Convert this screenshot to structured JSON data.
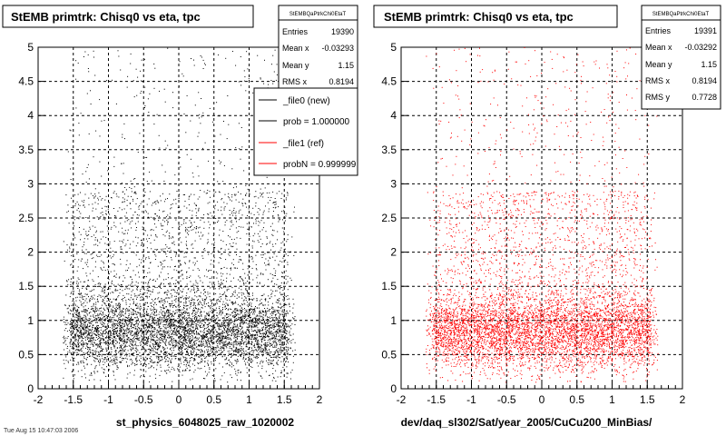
{
  "footer_text": "Tue Aug 15 10:47:03 2006",
  "colors": {
    "new": "#000000",
    "ref": "#ff0000",
    "grid": "#000000",
    "background": "#ffffff"
  },
  "legend": {
    "entries": [
      {
        "label": "_file0 (new)",
        "color": "#000000"
      },
      {
        "label": "prob = 1.000000",
        "color": "#000000"
      },
      {
        "label": "_file1 (ref)",
        "color": "#ff0000"
      },
      {
        "label": "probN = 0.999999",
        "color": "#ff0000"
      }
    ]
  },
  "chart_data": [
    {
      "type": "scatter",
      "title": "StEMB primtrk: Chisq0 vs eta, tpc",
      "xlabel": "st_physics_6048025_raw_1020002",
      "ylabel": "",
      "xlim": [
        -2,
        2
      ],
      "ylim": [
        0,
        5
      ],
      "x_ticks": [
        "-2",
        "-1.5",
        "-1",
        "-0.5",
        "0",
        "0.5",
        "1",
        "1.5",
        "2"
      ],
      "y_ticks": [
        "0",
        "0.5",
        "1",
        "1.5",
        "2",
        "2.5",
        "3",
        "3.5",
        "4",
        "4.5",
        "5"
      ],
      "grid": true,
      "color": "#000000",
      "stats": {
        "name": "StEMBQaPtrkChi0EtaT",
        "rows": [
          {
            "label": "Entries",
            "value": "19390"
          },
          {
            "label": "Mean x",
            "value": "-0.03293"
          },
          {
            "label": "Mean y",
            "value": "1.15"
          },
          {
            "label": "RMS x",
            "value": "0.8194"
          }
        ]
      },
      "distribution": {
        "x_range": [
          -1.6,
          1.6
        ],
        "y_core": [
          0.3,
          1.5
        ],
        "y_tail_max": 5,
        "n_points": 7000
      }
    },
    {
      "type": "scatter",
      "title": "StEMB primtrk: Chisq0 vs eta, tpc",
      "xlabel": "dev/daq_sl302/Sat/year_2005/CuCu200_MinBias/",
      "ylabel": "",
      "xlim": [
        -2,
        2
      ],
      "ylim": [
        0,
        5
      ],
      "x_ticks": [
        "-2",
        "-1.5",
        "-1",
        "-0.5",
        "0",
        "0.5",
        "1",
        "1.5",
        "2"
      ],
      "y_ticks": [
        "0",
        "0.5",
        "1",
        "1.5",
        "2",
        "2.5",
        "3",
        "3.5",
        "4",
        "4.5",
        "5"
      ],
      "grid": true,
      "color": "#ff0000",
      "stats": {
        "name": "StEMBQaPtrkChi0EtaT",
        "rows": [
          {
            "label": "Entries",
            "value": "19391"
          },
          {
            "label": "Mean x",
            "value": "-0.03292"
          },
          {
            "label": "Mean y",
            "value": "1.15"
          },
          {
            "label": "RMS x",
            "value": "0.8194"
          },
          {
            "label": "RMS y",
            "value": "0.7728"
          }
        ]
      },
      "distribution": {
        "x_range": [
          -1.6,
          1.6
        ],
        "y_core": [
          0.3,
          1.5
        ],
        "y_tail_max": 5,
        "n_points": 7000
      }
    }
  ]
}
